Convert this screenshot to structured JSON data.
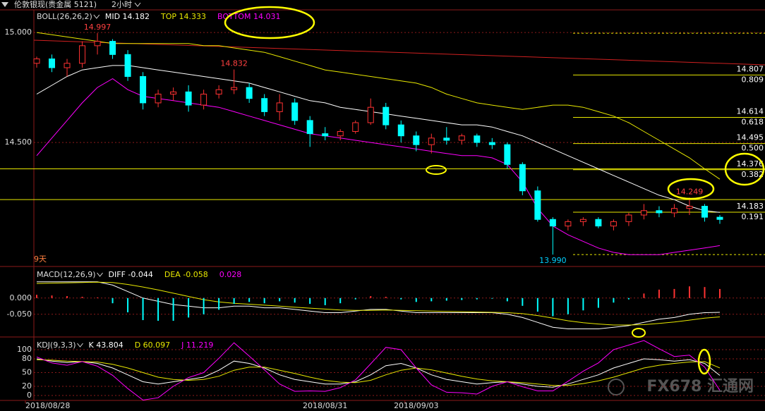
{
  "header": {
    "title": "伦敦银现(贵金属 5121)",
    "period": "2小时",
    "watermark": "FX678 汇通网"
  },
  "chart_data": [
    {
      "type": "candlestick",
      "legend_title": "BOLL(26,26,2)",
      "categories": [
        "2018/08/28",
        null,
        null,
        null,
        null,
        null,
        null,
        null,
        null,
        null,
        null,
        null,
        null,
        null,
        null,
        null,
        null,
        null,
        null,
        "2018/08/31",
        null,
        null,
        null,
        null,
        null,
        "2018/09/03",
        null,
        null,
        null,
        null,
        null,
        null,
        null,
        null,
        null,
        null,
        null,
        null,
        null,
        null,
        null,
        null,
        null,
        null,
        null,
        null
      ],
      "up_color": "#ff3232",
      "down_color": "#00ffff",
      "candles": [
        [
          14.86,
          14.89,
          14.84,
          14.88
        ],
        [
          14.88,
          14.9,
          14.82,
          14.84
        ],
        [
          14.84,
          14.88,
          14.8,
          14.86
        ],
        [
          14.86,
          14.96,
          14.84,
          14.94
        ],
        [
          14.94,
          14.997,
          14.9,
          14.96
        ],
        [
          14.96,
          14.97,
          14.88,
          14.9
        ],
        [
          14.9,
          14.92,
          14.78,
          14.8
        ],
        [
          14.8,
          14.82,
          14.65,
          14.68
        ],
        [
          14.68,
          14.74,
          14.66,
          14.72
        ],
        [
          14.72,
          14.75,
          14.69,
          14.73
        ],
        [
          14.73,
          14.76,
          14.64,
          14.67
        ],
        [
          14.67,
          14.74,
          14.65,
          14.72
        ],
        [
          14.72,
          14.76,
          14.7,
          14.74
        ],
        [
          14.74,
          14.832,
          14.72,
          14.75
        ],
        [
          14.75,
          14.77,
          14.68,
          14.7
        ],
        [
          14.7,
          14.72,
          14.62,
          14.64
        ],
        [
          14.64,
          14.72,
          14.6,
          14.68
        ],
        [
          14.68,
          14.7,
          14.58,
          14.6
        ],
        [
          14.6,
          14.62,
          14.48,
          14.54
        ],
        [
          14.54,
          14.57,
          14.51,
          14.53
        ],
        [
          14.53,
          14.56,
          14.51,
          14.55
        ],
        [
          14.55,
          14.6,
          14.54,
          14.59
        ],
        [
          14.59,
          14.7,
          14.58,
          14.66
        ],
        [
          14.66,
          14.68,
          14.56,
          14.58
        ],
        [
          14.58,
          14.6,
          14.5,
          14.53
        ],
        [
          14.53,
          14.55,
          14.46,
          14.49
        ],
        [
          14.49,
          14.54,
          14.45,
          14.52
        ],
        [
          14.52,
          14.57,
          14.49,
          14.51
        ],
        [
          14.51,
          14.54,
          14.49,
          14.53
        ],
        [
          14.53,
          14.54,
          14.48,
          14.5
        ],
        [
          14.5,
          14.52,
          14.47,
          14.49
        ],
        [
          14.49,
          14.5,
          14.38,
          14.4
        ],
        [
          14.4,
          14.41,
          14.26,
          14.28
        ],
        [
          14.28,
          14.3,
          14.14,
          14.15
        ],
        [
          14.15,
          14.16,
          13.99,
          14.12
        ],
        [
          14.12,
          14.15,
          14.1,
          14.14
        ],
        [
          14.14,
          14.16,
          14.12,
          14.15
        ],
        [
          14.15,
          14.16,
          14.11,
          14.12
        ],
        [
          14.12,
          14.15,
          14.1,
          14.14
        ],
        [
          14.14,
          14.18,
          14.12,
          14.17
        ],
        [
          14.17,
          14.22,
          14.15,
          14.19
        ],
        [
          14.19,
          14.21,
          14.16,
          14.18
        ],
        [
          14.18,
          14.22,
          14.16,
          14.2
        ],
        [
          14.2,
          14.249,
          14.17,
          14.21
        ],
        [
          14.21,
          14.22,
          14.14,
          14.16
        ],
        [
          14.16,
          14.17,
          14.13,
          14.15
        ]
      ],
      "series": [
        {
          "name": "MID 14.182",
          "color": "#ffffff",
          "values": [
            14.72,
            14.76,
            14.8,
            14.83,
            14.84,
            14.85,
            14.85,
            14.84,
            14.83,
            14.82,
            14.81,
            14.8,
            14.79,
            14.78,
            14.77,
            14.75,
            14.73,
            14.71,
            14.69,
            14.68,
            14.66,
            14.65,
            14.64,
            14.63,
            14.62,
            14.61,
            14.6,
            14.59,
            14.58,
            14.58,
            14.57,
            14.55,
            14.53,
            14.5,
            14.47,
            14.44,
            14.41,
            14.38,
            14.35,
            14.32,
            14.29,
            14.26,
            14.24,
            14.21,
            14.19,
            14.182
          ]
        },
        {
          "name": "TOP 14.333",
          "color": "#e8e800",
          "values": [
            15.0,
            14.99,
            14.98,
            14.97,
            14.96,
            14.95,
            14.95,
            14.95,
            14.95,
            14.95,
            14.95,
            14.94,
            14.94,
            14.93,
            14.92,
            14.91,
            14.89,
            14.87,
            14.85,
            14.83,
            14.82,
            14.81,
            14.8,
            14.79,
            14.78,
            14.77,
            14.75,
            14.72,
            14.7,
            14.68,
            14.67,
            14.66,
            14.65,
            14.66,
            14.67,
            14.67,
            14.66,
            14.64,
            14.62,
            14.59,
            14.55,
            14.51,
            14.47,
            14.43,
            14.38,
            14.333
          ]
        },
        {
          "name": "BOTTOM 14.031",
          "color": "#ff00ff",
          "values": [
            14.44,
            14.52,
            14.6,
            14.68,
            14.75,
            14.79,
            14.74,
            14.71,
            14.7,
            14.69,
            14.68,
            14.67,
            14.66,
            14.64,
            14.62,
            14.6,
            14.58,
            14.56,
            14.54,
            14.53,
            14.52,
            14.51,
            14.5,
            14.49,
            14.48,
            14.47,
            14.46,
            14.45,
            14.44,
            14.44,
            14.43,
            14.4,
            14.32,
            14.2,
            14.12,
            14.08,
            14.05,
            14.02,
            14.0,
            13.99,
            13.99,
            13.99,
            14.0,
            14.01,
            14.02,
            14.031
          ]
        }
      ],
      "annotations": [
        {
          "index": 4,
          "value": 14.997,
          "label": "14.997"
        },
        {
          "index": 13,
          "value": 14.832,
          "label": "14.832"
        },
        {
          "index": 34,
          "value": 13.99,
          "label": "13.990"
        },
        {
          "index": 43,
          "value": 14.249,
          "label": "14.249"
        }
      ],
      "fib_range": [
        14.997,
        13.99
      ],
      "fib_levels": [
        {
          "price": 14.807,
          "ratio": {
            "value": 0.809,
            "label": "0.809"
          }
        },
        {
          "price": 14.614,
          "ratio": {
            "value": 0.618,
            "label": "0.618"
          }
        },
        {
          "price": 14.495,
          "ratio": {
            "value": 0.5,
            "label": "0.500"
          }
        },
        {
          "price": 14.376,
          "ratio": {
            "value": 0.382,
            "label": "0.382"
          }
        },
        {
          "price": 14.183,
          "ratio": {
            "value": 0.191,
            "label": "0.191"
          }
        }
      ],
      "horizontal_lines": [
        14.38,
        14.24
      ],
      "trendline": [
        14.965,
        14.853
      ],
      "note": "9天",
      "ylim": [
        13.936,
        15.103
      ],
      "yticks": [
        {
          "value": 15,
          "label": "15.000"
        },
        {
          "value": 14.5,
          "label": "14.500"
        }
      ]
    },
    {
      "type": "macd",
      "legend_title": "MACD(12,26,9)",
      "series": [
        {
          "name": "DIFF -0.044",
          "color": "#ffffff",
          "values": [
            0.05,
            0.05,
            0.05,
            0.05,
            0.05,
            0.04,
            0.02,
            0.0,
            -0.01,
            -0.02,
            -0.025,
            -0.03,
            -0.03,
            -0.025,
            -0.025,
            -0.03,
            -0.03,
            -0.035,
            -0.04,
            -0.045,
            -0.045,
            -0.04,
            -0.035,
            -0.035,
            -0.04,
            -0.045,
            -0.045,
            -0.045,
            -0.045,
            -0.045,
            -0.045,
            -0.05,
            -0.06,
            -0.075,
            -0.09,
            -0.095,
            -0.095,
            -0.095,
            -0.09,
            -0.085,
            -0.075,
            -0.065,
            -0.06,
            -0.05,
            -0.045,
            -0.044
          ]
        },
        {
          "name": "DEA -0.058",
          "color": "#e8e800",
          "values": [
            0.045,
            0.046,
            0.047,
            0.048,
            0.049,
            0.048,
            0.042,
            0.034,
            0.025,
            0.015,
            0.005,
            -0.005,
            -0.012,
            -0.016,
            -0.019,
            -0.022,
            -0.025,
            -0.028,
            -0.031,
            -0.034,
            -0.037,
            -0.038,
            -0.038,
            -0.037,
            -0.038,
            -0.039,
            -0.04,
            -0.041,
            -0.042,
            -0.043,
            -0.044,
            -0.045,
            -0.048,
            -0.054,
            -0.062,
            -0.07,
            -0.076,
            -0.08,
            -0.083,
            -0.083,
            -0.082,
            -0.078,
            -0.074,
            -0.068,
            -0.062,
            -0.058
          ]
        },
        {
          "name": "0.028",
          "color": "#ff00ff",
          "histogram": true,
          "up_color": "#ff3232",
          "down_color": "#00ffff",
          "values": [
            0.01,
            0.008,
            0.006,
            0.004,
            0.002,
            -0.016,
            -0.044,
            -0.068,
            -0.07,
            -0.07,
            -0.06,
            -0.05,
            -0.036,
            -0.018,
            -0.012,
            -0.016,
            -0.01,
            -0.014,
            -0.018,
            -0.022,
            -0.016,
            -0.004,
            0.006,
            0.004,
            -0.004,
            -0.012,
            -0.01,
            -0.008,
            -0.006,
            -0.004,
            -0.002,
            -0.01,
            -0.024,
            -0.042,
            -0.056,
            -0.05,
            -0.038,
            -0.03,
            -0.014,
            -0.004,
            0.014,
            0.026,
            0.028,
            0.036,
            0.034,
            0.028
          ]
        }
      ],
      "ylim": [
        -0.12,
        0.093
      ],
      "yticks": [
        {
          "value": 0,
          "label": "0.000"
        },
        {
          "value": -0.05,
          "label": "-0.050"
        }
      ]
    },
    {
      "type": "line",
      "legend_title": "KDJ(9,3,3)",
      "series": [
        {
          "name": "K 43.804",
          "color": "#ffffff",
          "values": [
            80,
            75,
            72,
            74,
            70,
            60,
            45,
            30,
            25,
            30,
            35,
            40,
            55,
            75,
            70,
            60,
            45,
            35,
            30,
            25,
            25,
            30,
            45,
            65,
            70,
            60,
            45,
            35,
            30,
            25,
            28,
            30,
            25,
            20,
            18,
            25,
            35,
            45,
            60,
            70,
            80,
            78,
            75,
            78,
            70,
            43.804
          ]
        },
        {
          "name": "D 60.097",
          "color": "#e8e800",
          "values": [
            78,
            77,
            75,
            74,
            73,
            68,
            60,
            50,
            40,
            35,
            33,
            35,
            42,
            55,
            62,
            62,
            55,
            48,
            40,
            33,
            29,
            28,
            33,
            45,
            55,
            60,
            56,
            49,
            42,
            36,
            32,
            30,
            28,
            25,
            22,
            22,
            26,
            32,
            40,
            50,
            60,
            66,
            70,
            73,
            74,
            60.097
          ]
        },
        {
          "name": "J 11.219",
          "color": "#ff00ff",
          "values": [
            84,
            71,
            66,
            74,
            64,
            44,
            15,
            -10,
            -5,
            20,
            39,
            50,
            81,
            115,
            86,
            56,
            25,
            9,
            10,
            9,
            17,
            34,
            69,
            105,
            100,
            60,
            23,
            7,
            6,
            3,
            20,
            30,
            19,
            10,
            10,
            31,
            53,
            71,
            100,
            110,
            120,
            102,
            85,
            88,
            62,
            11.219
          ]
        }
      ],
      "ylim": [
        -10.8,
        124.6
      ],
      "yticks": [
        100,
        80,
        50,
        20,
        0
      ]
    }
  ]
}
